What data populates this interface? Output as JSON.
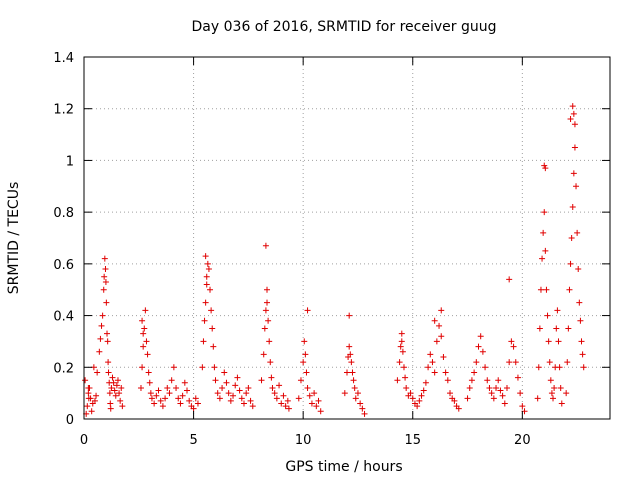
{
  "chart_data": {
    "type": "scatter",
    "title": "Day 036 of 2016, SRMTID for receiver guug",
    "xlabel": "GPS time / hours",
    "ylabel": "SRMTID / TECUs",
    "xlim": [
      0,
      24
    ],
    "ylim": [
      0,
      1.4
    ],
    "x_ticks": [
      0,
      5,
      10,
      15,
      20
    ],
    "y_ticks": [
      0,
      0.2,
      0.4,
      0.6,
      0.8,
      1,
      1.2,
      1.4
    ],
    "x_tick_labels": [
      "0",
      "5",
      "10",
      "15",
      "20"
    ],
    "y_tick_labels": [
      "0",
      "0.2",
      "0.4",
      "0.6",
      "0.8",
      "1",
      "1.2",
      "1.4"
    ],
    "grid": true,
    "marker": "+",
    "series_color": "#e00000",
    "series": [
      {
        "name": "SRMTID",
        "x": [
          0.05,
          0.1,
          0.15,
          0.2,
          0.25,
          0.3,
          0.35,
          0.4,
          0.45,
          0.5,
          0.55,
          0.6,
          0.7,
          0.75,
          0.8,
          0.85,
          0.9,
          0.92,
          0.95,
          0.98,
          1.0,
          1.02,
          1.05,
          1.08,
          1.1,
          1.12,
          1.15,
          1.18,
          1.2,
          1.22,
          1.25,
          1.3,
          1.35,
          1.4,
          1.45,
          1.5,
          1.55,
          1.6,
          1.65,
          1.7,
          1.75,
          2.6,
          2.65,
          2.7,
          2.75,
          2.8,
          2.85,
          2.9,
          2.95,
          3.0,
          3.05,
          3.1,
          3.2,
          3.3,
          3.4,
          3.5,
          3.6,
          3.7,
          3.8,
          3.9,
          4.0,
          4.1,
          4.2,
          4.3,
          4.4,
          4.5,
          4.6,
          4.7,
          4.8,
          4.9,
          5.0,
          5.1,
          5.2,
          5.4,
          5.45,
          5.5,
          5.55,
          5.6,
          5.65,
          5.7,
          5.75,
          5.8,
          5.85,
          5.9,
          5.95,
          6.0,
          6.1,
          6.2,
          6.3,
          6.4,
          6.5,
          6.6,
          6.7,
          6.8,
          6.9,
          7.0,
          7.1,
          7.2,
          7.3,
          7.4,
          7.5,
          7.6,
          7.7,
          8.1,
          8.2,
          8.25,
          8.3,
          8.35,
          8.4,
          8.45,
          8.5,
          8.55,
          8.6,
          8.7,
          8.8,
          8.9,
          9.0,
          9.1,
          9.2,
          9.3,
          9.35,
          9.8,
          9.9,
          10.0,
          10.05,
          10.1,
          10.15,
          10.2,
          10.3,
          10.4,
          10.5,
          10.6,
          10.7,
          10.8,
          11.9,
          12.0,
          12.05,
          12.1,
          12.15,
          12.2,
          12.25,
          12.3,
          12.35,
          12.4,
          12.5,
          12.6,
          12.7,
          12.8,
          14.3,
          14.4,
          14.45,
          14.5,
          14.55,
          14.6,
          14.65,
          14.7,
          14.8,
          14.9,
          15.0,
          15.1,
          15.2,
          15.3,
          15.4,
          15.5,
          15.6,
          15.7,
          15.8,
          15.9,
          16.0,
          16.1,
          16.2,
          16.3,
          16.4,
          16.5,
          16.6,
          16.7,
          16.8,
          16.9,
          17.0,
          17.1,
          17.5,
          17.6,
          17.7,
          17.8,
          17.9,
          18.0,
          18.1,
          18.2,
          18.3,
          18.4,
          18.5,
          18.6,
          18.7,
          18.8,
          18.9,
          19.0,
          19.1,
          19.2,
          19.3,
          19.4,
          19.5,
          19.6,
          19.7,
          19.8,
          19.9,
          20.0,
          20.1,
          20.7,
          20.75,
          20.8,
          20.85,
          20.9,
          20.95,
          21.0,
          21.05,
          21.1,
          21.15,
          21.2,
          21.25,
          21.3,
          21.35,
          21.4,
          21.45,
          21.5,
          21.55,
          21.6,
          21.65,
          21.7,
          21.75,
          21.8,
          22.0,
          22.05,
          22.1,
          22.15,
          22.2,
          22.25,
          22.3,
          22.35,
          22.4,
          22.45,
          22.5,
          22.55,
          22.6,
          22.65,
          22.7,
          22.75,
          22.8,
          0.2,
          0.22,
          2.65,
          2.7,
          5.55,
          5.6,
          8.3,
          8.35,
          10.2,
          12.1,
          14.5,
          16.3,
          16.0,
          19.4,
          21.0,
          21.05,
          22.2,
          22.3,
          22.35,
          22.4
        ],
        "y": [
          0.15,
          0.02,
          0.05,
          0.1,
          0.12,
          0.08,
          0.03,
          0.06,
          0.2,
          0.07,
          0.09,
          0.18,
          0.26,
          0.31,
          0.36,
          0.4,
          0.5,
          0.55,
          0.62,
          0.58,
          0.53,
          0.45,
          0.33,
          0.3,
          0.22,
          0.18,
          0.14,
          0.1,
          0.06,
          0.04,
          0.12,
          0.16,
          0.14,
          0.11,
          0.09,
          0.13,
          0.15,
          0.1,
          0.07,
          0.12,
          0.05,
          0.12,
          0.2,
          0.28,
          0.35,
          0.42,
          0.3,
          0.25,
          0.18,
          0.14,
          0.1,
          0.08,
          0.06,
          0.09,
          0.11,
          0.07,
          0.05,
          0.08,
          0.12,
          0.1,
          0.15,
          0.2,
          0.12,
          0.08,
          0.06,
          0.09,
          0.14,
          0.11,
          0.07,
          0.05,
          0.04,
          0.08,
          0.06,
          0.2,
          0.3,
          0.38,
          0.45,
          0.52,
          0.6,
          0.58,
          0.5,
          0.42,
          0.35,
          0.28,
          0.2,
          0.15,
          0.1,
          0.08,
          0.12,
          0.18,
          0.14,
          0.1,
          0.07,
          0.09,
          0.13,
          0.16,
          0.11,
          0.08,
          0.06,
          0.1,
          0.12,
          0.07,
          0.05,
          0.15,
          0.25,
          0.35,
          0.42,
          0.45,
          0.38,
          0.3,
          0.22,
          0.16,
          0.12,
          0.1,
          0.08,
          0.13,
          0.06,
          0.09,
          0.05,
          0.07,
          0.04,
          0.08,
          0.15,
          0.22,
          0.3,
          0.25,
          0.18,
          0.12,
          0.09,
          0.06,
          0.1,
          0.05,
          0.07,
          0.03,
          0.1,
          0.18,
          0.24,
          0.28,
          0.25,
          0.22,
          0.18,
          0.15,
          0.12,
          0.08,
          0.1,
          0.06,
          0.04,
          0.02,
          0.15,
          0.22,
          0.28,
          0.3,
          0.26,
          0.2,
          0.16,
          0.12,
          0.09,
          0.1,
          0.08,
          0.06,
          0.05,
          0.07,
          0.09,
          0.11,
          0.14,
          0.2,
          0.25,
          0.22,
          0.18,
          0.3,
          0.36,
          0.32,
          0.24,
          0.18,
          0.15,
          0.1,
          0.08,
          0.07,
          0.05,
          0.04,
          0.08,
          0.12,
          0.15,
          0.18,
          0.22,
          0.28,
          0.32,
          0.26,
          0.2,
          0.15,
          0.12,
          0.1,
          0.08,
          0.12,
          0.15,
          0.11,
          0.09,
          0.06,
          0.12,
          0.22,
          0.3,
          0.28,
          0.22,
          0.16,
          0.1,
          0.05,
          0.03,
          0.08,
          0.2,
          0.35,
          0.5,
          0.62,
          0.72,
          0.8,
          0.65,
          0.5,
          0.4,
          0.3,
          0.22,
          0.15,
          0.1,
          0.08,
          0.12,
          0.2,
          0.35,
          0.42,
          0.3,
          0.2,
          0.12,
          0.06,
          0.1,
          0.22,
          0.35,
          0.5,
          0.6,
          0.7,
          0.82,
          0.95,
          1.05,
          0.9,
          0.72,
          0.58,
          0.45,
          0.38,
          0.3,
          0.25,
          0.2,
          0.12,
          0.08,
          0.38,
          0.33,
          0.63,
          0.55,
          0.67,
          0.5,
          0.42,
          0.4,
          0.33,
          0.42,
          0.38,
          0.54,
          0.98,
          0.97,
          1.16,
          1.21,
          1.18,
          1.14
        ]
      }
    ]
  }
}
